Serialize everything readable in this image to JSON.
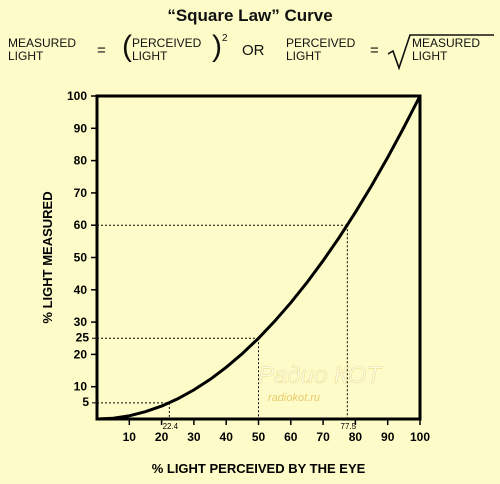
{
  "title": "“Square Law” Curve",
  "formula": {
    "lhs": [
      "MEASURED",
      "LIGHT"
    ],
    "equals": "=",
    "paren_open": "(",
    "perceived": [
      "PERCEIVED",
      "LIGHT"
    ],
    "paren_close": ")",
    "exponent": "2",
    "or": "OR",
    "lhs2": [
      "PERCEIVED",
      "LIGHT"
    ],
    "equals2": "=",
    "radicand": [
      "MEASURED",
      "LIGHT"
    ]
  },
  "watermark": {
    "line1": "Радио КОТ",
    "line2": "radiokot.ru"
  },
  "chart_data": {
    "type": "line",
    "xlabel": "% LIGHT PERCEIVED BY THE EYE",
    "ylabel": "% LIGHT MEASURED",
    "xlim": [
      0,
      100
    ],
    "ylim": [
      0,
      100
    ],
    "x_ticks": [
      10,
      20,
      30,
      40,
      50,
      60,
      70,
      80,
      90,
      100
    ],
    "y_ticks": [
      10,
      20,
      30,
      40,
      50,
      60,
      70,
      80,
      90,
      100
    ],
    "y_extra_ticks": [
      5,
      25
    ],
    "x_extra_ticks": [
      "22.4",
      "77.5"
    ],
    "curve": "y = x^2 / 100",
    "series": [
      {
        "x": [
          0,
          5,
          10,
          15,
          20,
          25,
          30,
          35,
          40,
          45,
          50,
          55,
          60,
          65,
          70,
          75,
          80,
          85,
          90,
          95,
          100
        ],
        "y": [
          0,
          0.25,
          1,
          2.25,
          4,
          6.25,
          9,
          12.25,
          16,
          20.25,
          25,
          30.25,
          36,
          42.25,
          49,
          56.25,
          64,
          72.25,
          81,
          90.25,
          100
        ]
      }
    ],
    "reference_points": [
      {
        "x": 22.4,
        "y": 5
      },
      {
        "x": 50,
        "y": 25
      },
      {
        "x": 77.5,
        "y": 60
      }
    ],
    "grid": false,
    "line_color": "#000000",
    "background": "#fdfcc8"
  }
}
